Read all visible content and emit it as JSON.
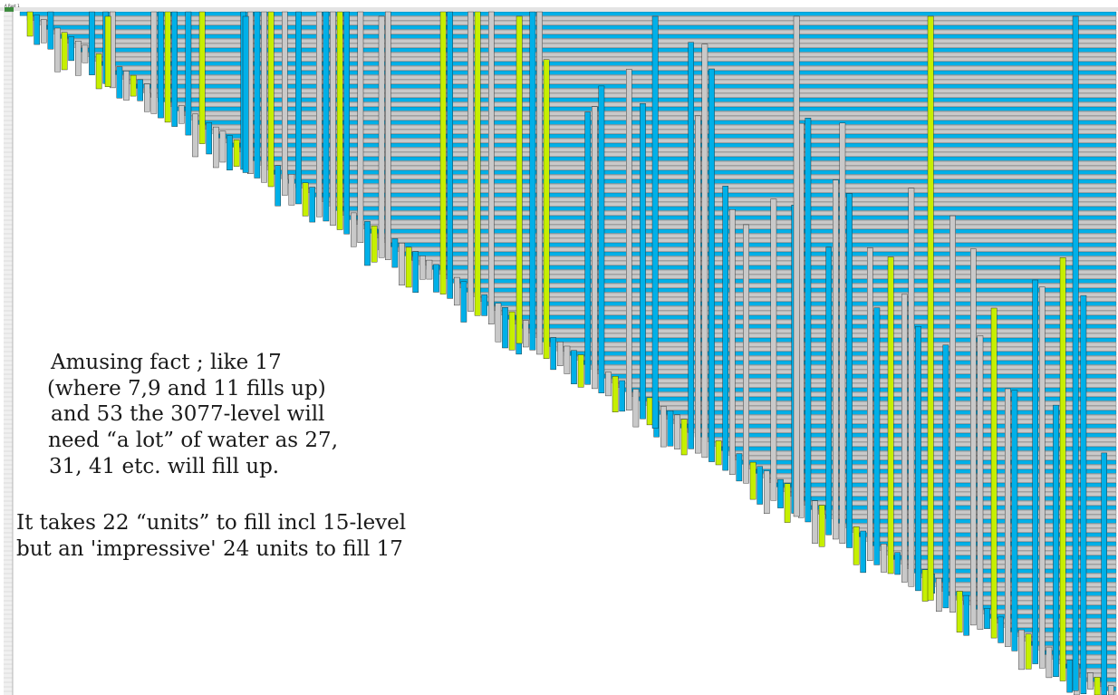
{
  "spreadsheet": {
    "name_box": "A Rust 1",
    "colors": {
      "blue": "#00b0e8",
      "green": "#c6ef00",
      "gray": "#c9c9c9",
      "grid": "#b4b4b4",
      "outline": "#202020",
      "background": "#ffffff"
    }
  },
  "annotation": {
    "lines": [
      "Amusing fact ; like 17",
      "(where 7,9 and 11 fills up)",
      "and 53 the 3077-level will",
      "need “a lot” of water as 27,",
      "31, 41 etc. will fill up."
    ]
  },
  "footnote": {
    "lines": [
      "It takes 22 “units” to fill incl 15-level",
      "but an 'impressive' 24 units to fill 17"
    ]
  }
}
